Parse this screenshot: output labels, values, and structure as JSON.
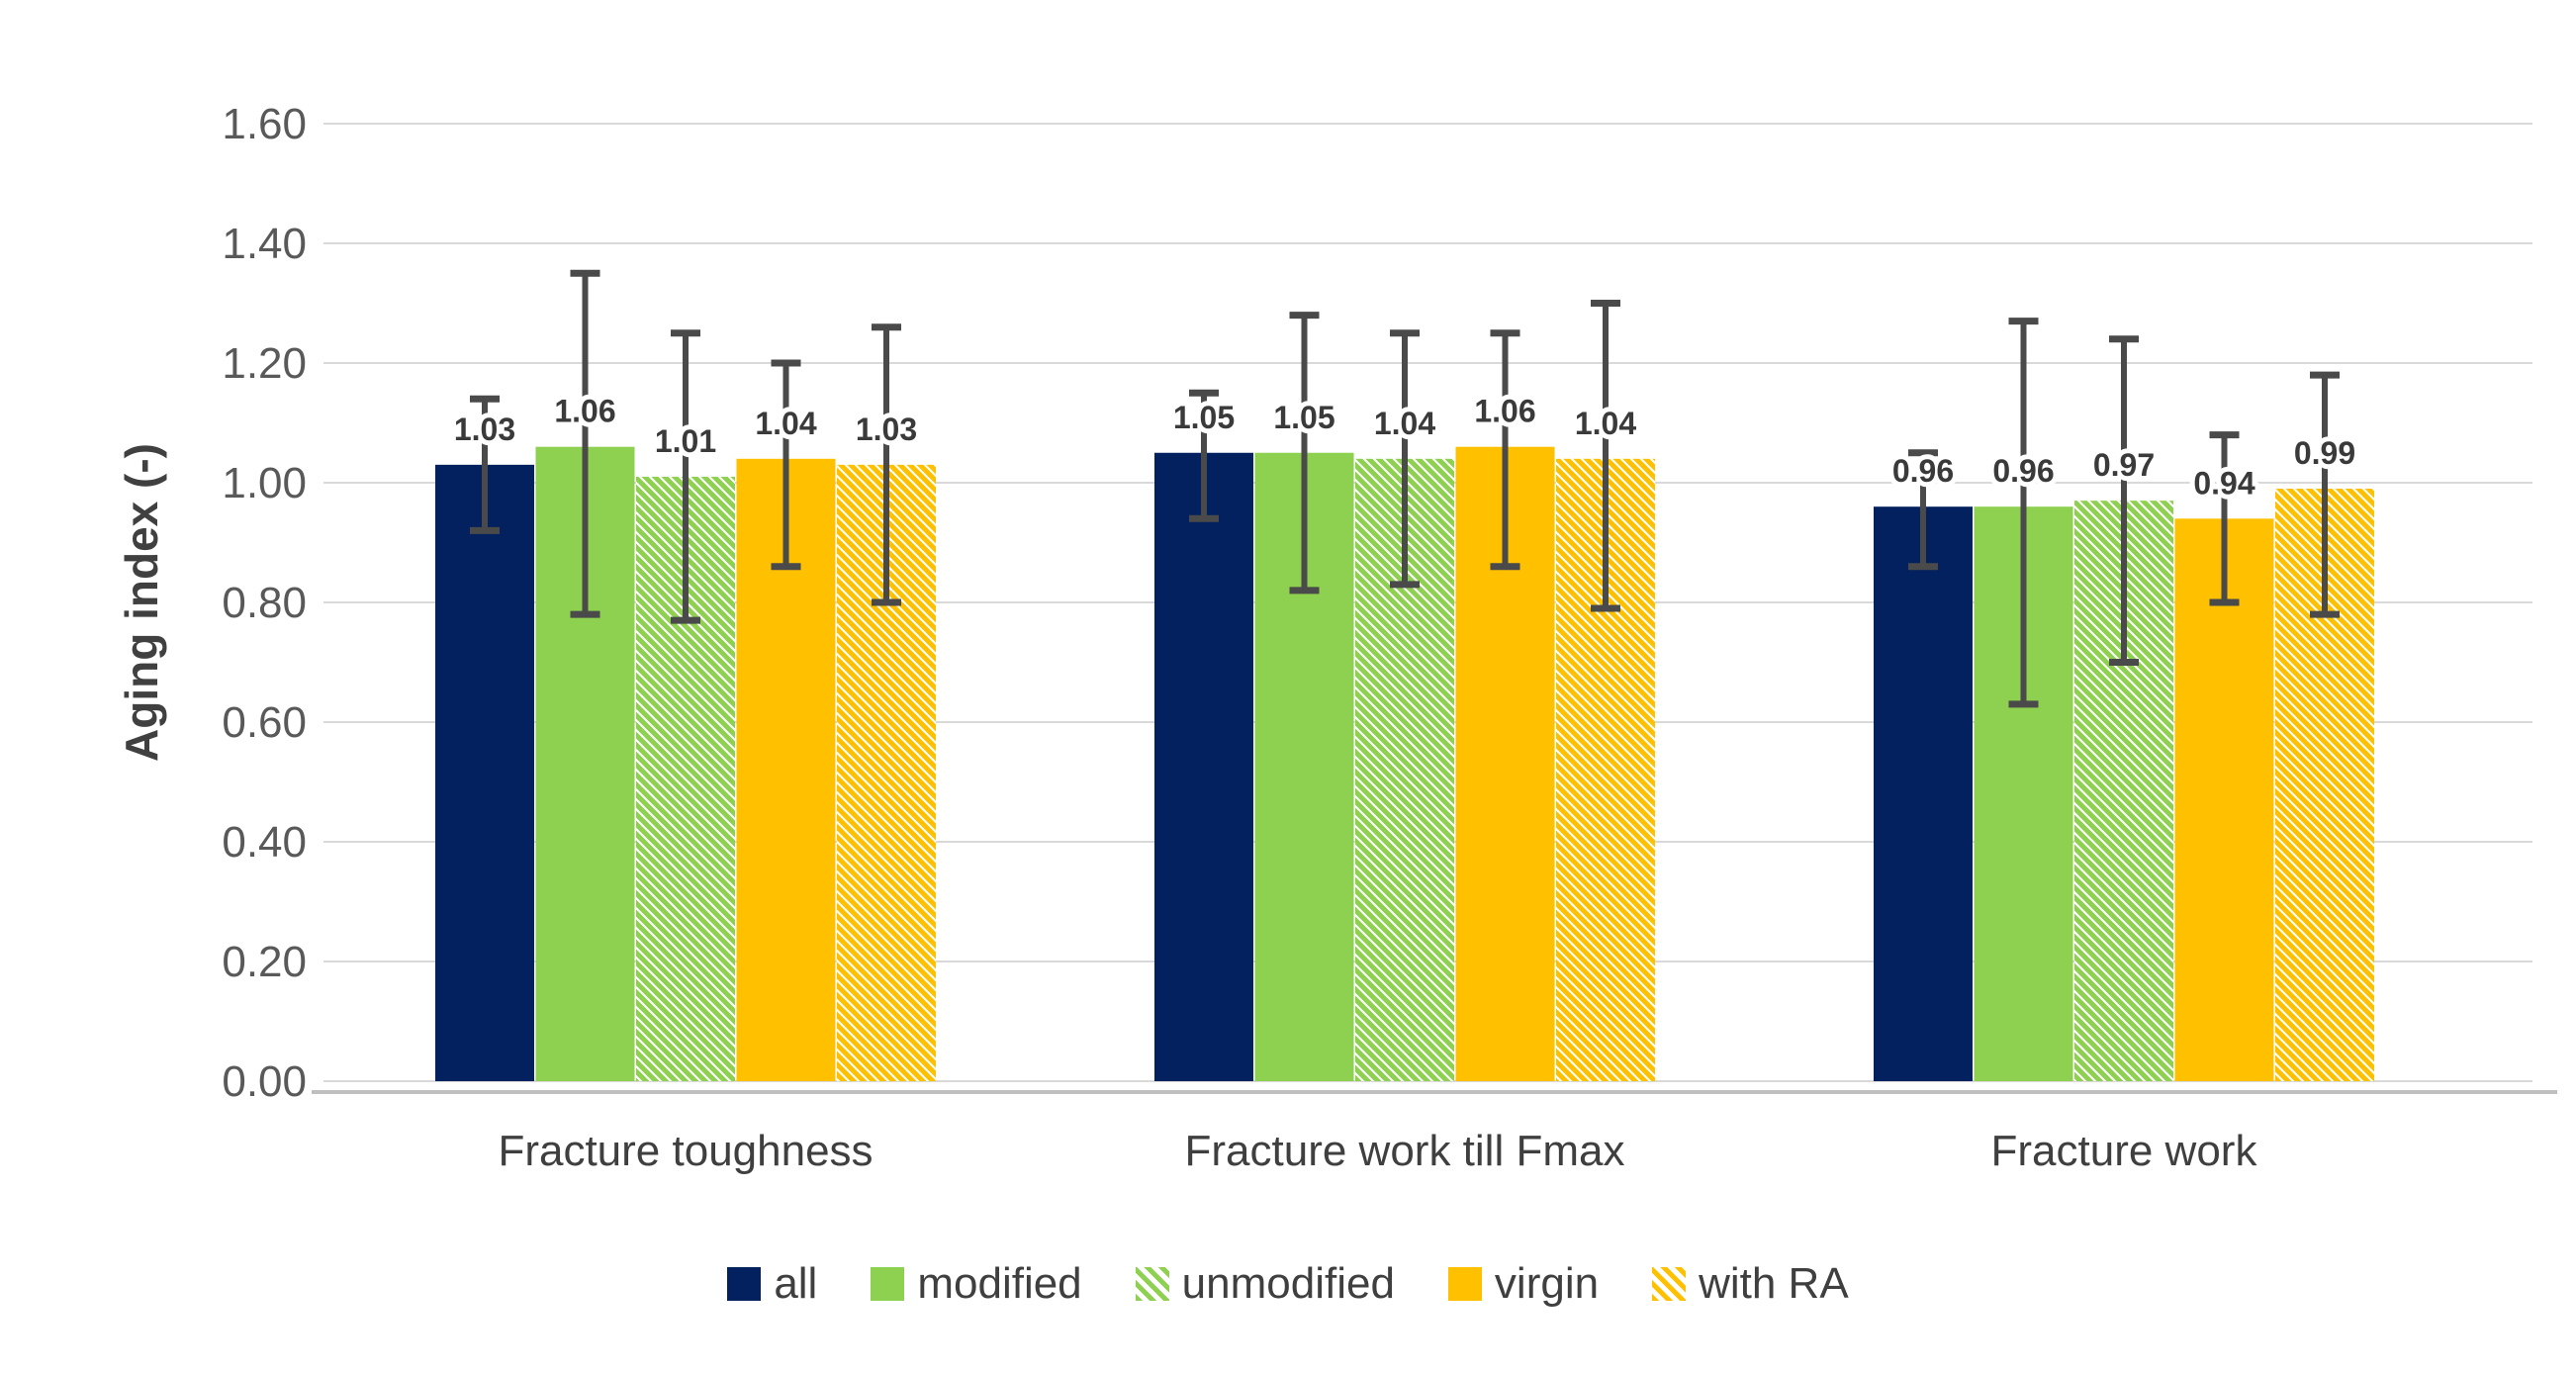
{
  "chart_data": {
    "type": "bar",
    "title": "",
    "xlabel": "",
    "ylabel": "Aging index (-)",
    "ylim": [
      0.0,
      1.6
    ],
    "ytick_step": 0.2,
    "ytick_labels": [
      "0.00",
      "0.20",
      "0.40",
      "0.60",
      "0.80",
      "1.00",
      "1.20",
      "1.40",
      "1.60"
    ],
    "grid": true,
    "legend_position": "bottom",
    "categories": [
      "Fracture toughness",
      "Fracture work till Fmax",
      "Fracture work"
    ],
    "series": [
      {
        "name": "all",
        "color": "#03215F",
        "hatch": false,
        "values": [
          1.03,
          1.05,
          0.96
        ],
        "error_low": [
          0.92,
          0.94,
          0.86
        ],
        "error_high": [
          1.14,
          1.15,
          1.05
        ]
      },
      {
        "name": "modified",
        "color": "#8ED04F",
        "hatch": false,
        "values": [
          1.06,
          1.05,
          0.96
        ],
        "error_low": [
          0.78,
          0.82,
          0.63
        ],
        "error_high": [
          1.35,
          1.28,
          1.27
        ]
      },
      {
        "name": "unmodified",
        "color": "#8ED04F",
        "hatch": true,
        "values": [
          1.01,
          1.04,
          0.97
        ],
        "error_low": [
          0.77,
          0.83,
          0.7
        ],
        "error_high": [
          1.25,
          1.25,
          1.24
        ]
      },
      {
        "name": "virgin",
        "color": "#FFC000",
        "hatch": false,
        "values": [
          1.04,
          1.06,
          0.94
        ],
        "error_low": [
          0.86,
          0.86,
          0.8
        ],
        "error_high": [
          1.2,
          1.25,
          1.08
        ]
      },
      {
        "name": "with RA",
        "color": "#FFC000",
        "hatch": true,
        "values": [
          1.03,
          1.04,
          0.99
        ],
        "error_low": [
          0.8,
          0.79,
          0.78
        ],
        "error_high": [
          1.26,
          1.3,
          1.18
        ]
      }
    ],
    "value_label_decimals": 2,
    "colors": {
      "error_bar": "#4A4A4A",
      "gridline": "#D9D9D9",
      "axis_line": "#BFBFBF",
      "tick_text": "#595959",
      "label_text": "#3F3F3F",
      "value_text": "#3A3A3A",
      "background": "#FFFFFF"
    }
  }
}
